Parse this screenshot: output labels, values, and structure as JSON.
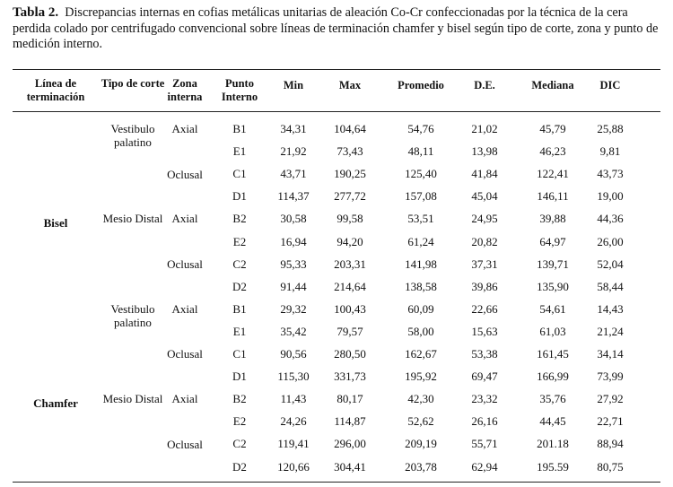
{
  "caption": {
    "label": "Tabla 2.",
    "text": "Discrepancias internas en cofias metálicas unitarias de aleación Co-Cr confeccionadas por la técnica de la cera perdida colado por centrifugado convencional sobre líneas de terminación chamfer y bisel según tipo de corte, zona y punto de medición interno."
  },
  "table": {
    "headers": {
      "linea": "Línea de terminación",
      "tipo": "Tipo de corte",
      "zona": "Zona interna",
      "punto": "Punto Interno",
      "min": "Min",
      "max": "Max",
      "promedio": "Promedio",
      "de": "D.E.",
      "mediana": "Mediana",
      "dic": "DIC"
    },
    "groups": [
      {
        "linea": "Bisel",
        "cortes": [
          {
            "tipo": "Vestibulo palatino",
            "zonas": [
              {
                "zona": "Axial"
              },
              {
                "zona": "Oclusal"
              }
            ]
          },
          {
            "tipo": "Mesio Distal",
            "zonas": [
              {
                "zona": "Axial"
              },
              {
                "zona": "Oclusal"
              }
            ]
          }
        ]
      },
      {
        "linea": "Chamfer",
        "cortes": [
          {
            "tipo": "Vestibulo palatino",
            "zonas": [
              {
                "zona": "Axial"
              },
              {
                "zona": "Oclusal"
              }
            ]
          },
          {
            "tipo": "Mesio Distal",
            "zonas": [
              {
                "zona": "Axial"
              },
              {
                "zona": "Oclusal"
              }
            ]
          }
        ]
      }
    ],
    "rows": [
      [
        "B1",
        "34,31",
        "104,64",
        "54,76",
        "21,02",
        "45,79",
        "25,88"
      ],
      [
        "E1",
        "21,92",
        "73,43",
        "48,11",
        "13,98",
        "46,23",
        "9,81"
      ],
      [
        "C1",
        "43,71",
        "190,25",
        "125,40",
        "41,84",
        "122,41",
        "43,73"
      ],
      [
        "D1",
        "114,37",
        "277,72",
        "157,08",
        "45,04",
        "146,11",
        "19,00"
      ],
      [
        "B2",
        "30,58",
        "99,58",
        "53,51",
        "24,95",
        "39,88",
        "44,36"
      ],
      [
        "E2",
        "16,94",
        "94,20",
        "61,24",
        "20,82",
        "64,97",
        "26,00"
      ],
      [
        "C2",
        "95,33",
        "203,31",
        "141,98",
        "37,31",
        "139,71",
        "52,04"
      ],
      [
        "D2",
        "91,44",
        "214,64",
        "138,58",
        "39,86",
        "135,90",
        "58,44"
      ],
      [
        "B1",
        "29,32",
        "100,43",
        "60,09",
        "22,66",
        "54,61",
        "14,43"
      ],
      [
        "E1",
        "35,42",
        "79,57",
        "58,00",
        "15,63",
        "61,03",
        "21,24"
      ],
      [
        "C1",
        "90,56",
        "280,50",
        "162,67",
        "53,38",
        "161,45",
        "34,14"
      ],
      [
        "D1",
        "115,30",
        "331,73",
        "195,92",
        "69,47",
        "166,99",
        "73,99"
      ],
      [
        "B2",
        "11,43",
        "80,17",
        "42,30",
        "23,32",
        "35,76",
        "27,92"
      ],
      [
        "E2",
        "24,26",
        "114,87",
        "52,62",
        "26,16",
        "44,45",
        "22,71"
      ],
      [
        "C2",
        "119,41",
        "296,00",
        "209,19",
        "55,71",
        "201.18",
        "88,94"
      ],
      [
        "D2",
        "120,66",
        "304,41",
        "203,78",
        "62,94",
        "195.59",
        "80,75"
      ]
    ]
  }
}
